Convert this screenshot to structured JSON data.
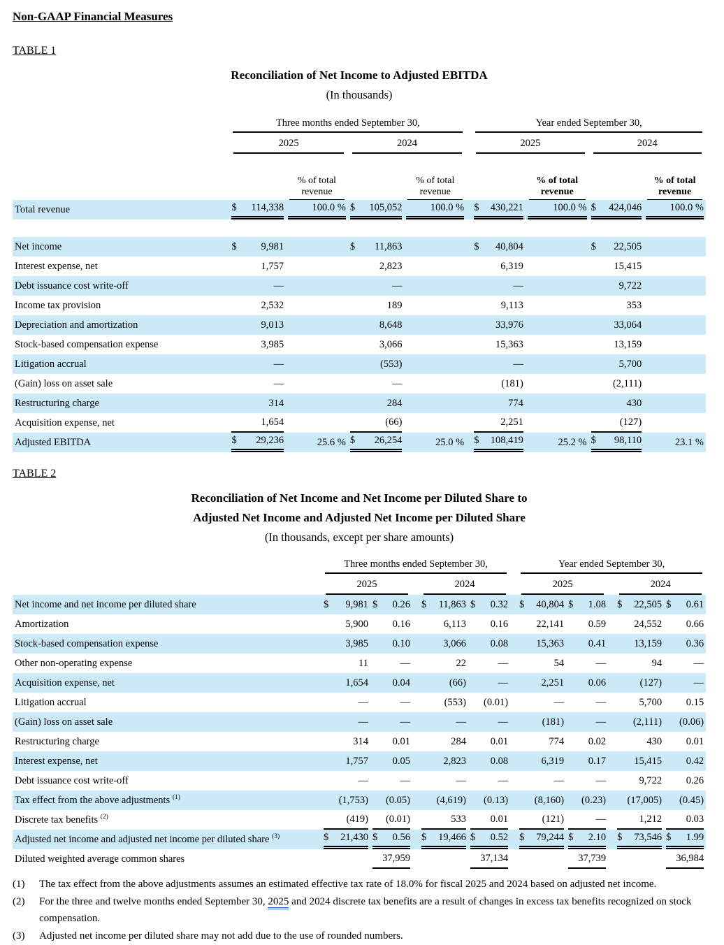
{
  "page": {
    "section_heading": "Non-GAAP Financial Measures",
    "table1_label": "TABLE 1",
    "table2_label": "TABLE 2"
  },
  "colors": {
    "row_highlight": "#cce9f8",
    "footnote_mark_underline": "#2e6bd8",
    "rule_color": "#000000"
  },
  "table1": {
    "title": "Reconciliation of Net Income to Adjusted EBITDA",
    "subtitle": "(In thousands)",
    "groups": [
      "Three months ended September 30,",
      "Year ended September 30,"
    ],
    "years": [
      "2025",
      "2024",
      "2025",
      "2024"
    ],
    "pct_headers": [
      {
        "text": "% of total revenue",
        "bold": false
      },
      {
        "text": "% of total revenue",
        "bold": false
      },
      {
        "text": "% of total revenue",
        "bold": true
      },
      {
        "text": "% of total revenue",
        "bold": true
      }
    ],
    "rows": [
      {
        "label": "Total revenue",
        "shade": true,
        "cells": [
          {
            "p": "$",
            "v": "114,338",
            "u": "double"
          },
          {
            "v": "100.0 %",
            "u": "double"
          },
          {
            "p": "$",
            "v": "105,052",
            "u": "double"
          },
          {
            "v": "100.0 %",
            "u": "double"
          },
          {
            "p": "$",
            "v": "430,221",
            "u": "double"
          },
          {
            "v": "100.0 %",
            "u": "double"
          },
          {
            "p": "$",
            "v": "424,046",
            "u": "double"
          },
          {
            "v": "100.0 %",
            "u": "double"
          }
        ]
      },
      {
        "gap": true
      },
      {
        "label": "Net income",
        "shade": true,
        "cells": [
          {
            "p": "$",
            "v": "9,981"
          },
          {},
          {
            "p": "$",
            "v": "11,863"
          },
          {},
          {
            "p": "$",
            "v": "40,804"
          },
          {},
          {
            "p": "$",
            "v": "22,505"
          },
          {}
        ]
      },
      {
        "label": "Interest expense, net",
        "shade": false,
        "cells": [
          {
            "v": "1,757"
          },
          {},
          {
            "v": "2,823"
          },
          {},
          {
            "v": "6,319"
          },
          {},
          {
            "v": "15,415"
          },
          {}
        ]
      },
      {
        "label": "Debt issuance cost write-off",
        "shade": true,
        "cells": [
          {
            "v": "—"
          },
          {},
          {
            "v": "—"
          },
          {},
          {
            "v": "—"
          },
          {},
          {
            "v": "9,722"
          },
          {}
        ]
      },
      {
        "label": "Income tax provision",
        "shade": false,
        "cells": [
          {
            "v": "2,532"
          },
          {},
          {
            "v": "189"
          },
          {},
          {
            "v": "9,113"
          },
          {},
          {
            "v": "353"
          },
          {}
        ]
      },
      {
        "label": "Depreciation and amortization",
        "shade": true,
        "cells": [
          {
            "v": "9,013"
          },
          {},
          {
            "v": "8,648"
          },
          {},
          {
            "v": "33,976"
          },
          {},
          {
            "v": "33,064"
          },
          {}
        ]
      },
      {
        "label": "Stock-based compensation expense",
        "shade": false,
        "cells": [
          {
            "v": "3,985"
          },
          {},
          {
            "v": "3,066"
          },
          {},
          {
            "v": "15,363"
          },
          {},
          {
            "v": "13,159"
          },
          {}
        ]
      },
      {
        "label": "Litigation accrual",
        "shade": true,
        "cells": [
          {
            "v": "—"
          },
          {},
          {
            "v": "(553)"
          },
          {},
          {
            "v": "—"
          },
          {},
          {
            "v": "5,700"
          },
          {}
        ]
      },
      {
        "label": "(Gain) loss on asset sale",
        "shade": false,
        "cells": [
          {
            "v": "—"
          },
          {},
          {
            "v": "—"
          },
          {},
          {
            "v": "(181)"
          },
          {},
          {
            "v": "(2,111)"
          },
          {}
        ]
      },
      {
        "label": "Restructuring charge",
        "shade": true,
        "cells": [
          {
            "v": "314"
          },
          {},
          {
            "v": "284"
          },
          {},
          {
            "v": "774"
          },
          {},
          {
            "v": "430"
          },
          {}
        ]
      },
      {
        "label": "Acquisition expense, net",
        "shade": false,
        "cells": [
          {
            "v": "1,654",
            "u": "single"
          },
          {},
          {
            "v": "(66)",
            "u": "single"
          },
          {},
          {
            "v": "2,251",
            "u": "single"
          },
          {},
          {
            "v": "(127)",
            "u": "single"
          },
          {}
        ]
      },
      {
        "label": "Adjusted EBITDA",
        "shade": true,
        "cells": [
          {
            "p": "$",
            "v": "29,236",
            "u": "double"
          },
          {
            "v": "25.6 %"
          },
          {
            "p": "$",
            "v": "26,254",
            "u": "double"
          },
          {
            "v": "25.0 %"
          },
          {
            "p": "$",
            "v": "108,419",
            "u": "double"
          },
          {
            "v": "25.2 %"
          },
          {
            "p": "$",
            "v": "98,110",
            "u": "double"
          },
          {
            "v": "23.1 %"
          }
        ]
      }
    ]
  },
  "table2": {
    "title_line1": "Reconciliation of Net Income and Net Income per Diluted Share to",
    "title_line2": "Adjusted Net Income and Adjusted Net Income per Diluted Share",
    "subtitle": "(In thousands, except per share amounts)",
    "groups": [
      "Three months ended September 30,",
      "Year ended September 30,"
    ],
    "years": [
      "2025",
      "2024",
      "2025",
      "2024"
    ],
    "rows": [
      {
        "label": "Net income and net income per diluted share",
        "shade": true,
        "cells": [
          {
            "p": "$",
            "v": "9,981"
          },
          {
            "p": "$",
            "v": "0.26"
          },
          {
            "p": "$",
            "v": "11,863"
          },
          {
            "p": "$",
            "v": "0.32"
          },
          {
            "p": "$",
            "v": "40,804"
          },
          {
            "p": "$",
            "v": "1.08"
          },
          {
            "p": "$",
            "v": "22,505"
          },
          {
            "p": "$",
            "v": "0.61"
          }
        ]
      },
      {
        "label": "Amortization",
        "shade": false,
        "cells": [
          {
            "v": "5,900"
          },
          {
            "v": "0.16"
          },
          {
            "v": "6,113"
          },
          {
            "v": "0.16"
          },
          {
            "v": "22,141"
          },
          {
            "v": "0.59"
          },
          {
            "v": "24,552"
          },
          {
            "v": "0.66"
          }
        ]
      },
      {
        "label": "Stock-based compensation expense",
        "shade": true,
        "cells": [
          {
            "v": "3,985"
          },
          {
            "v": "0.10"
          },
          {
            "v": "3,066"
          },
          {
            "v": "0.08"
          },
          {
            "v": "15,363"
          },
          {
            "v": "0.41"
          },
          {
            "v": "13,159"
          },
          {
            "v": "0.36"
          }
        ]
      },
      {
        "label": "Other non-operating expense",
        "shade": false,
        "cells": [
          {
            "v": "11"
          },
          {
            "v": "—"
          },
          {
            "v": "22"
          },
          {
            "v": "—"
          },
          {
            "v": "54"
          },
          {
            "v": "—"
          },
          {
            "v": "94"
          },
          {
            "v": "—"
          }
        ]
      },
      {
        "label": "Acquisition expense, net",
        "shade": true,
        "cells": [
          {
            "v": "1,654"
          },
          {
            "v": "0.04"
          },
          {
            "v": "(66)"
          },
          {
            "v": "—"
          },
          {
            "v": "2,251"
          },
          {
            "v": "0.06"
          },
          {
            "v": "(127)"
          },
          {
            "v": "—"
          }
        ]
      },
      {
        "label": "Litigation accrual",
        "shade": false,
        "cells": [
          {
            "v": "—"
          },
          {
            "v": "—"
          },
          {
            "v": "(553)"
          },
          {
            "v": "(0.01)"
          },
          {
            "v": "—"
          },
          {
            "v": "—"
          },
          {
            "v": "5,700"
          },
          {
            "v": "0.15"
          }
        ]
      },
      {
        "label": "(Gain) loss on asset sale",
        "shade": true,
        "cells": [
          {
            "v": "—"
          },
          {
            "v": "—"
          },
          {
            "v": "—"
          },
          {
            "v": "—"
          },
          {
            "v": "(181)"
          },
          {
            "v": "—"
          },
          {
            "v": "(2,111)"
          },
          {
            "v": "(0.06)"
          }
        ]
      },
      {
        "label": "Restructuring charge",
        "shade": false,
        "cells": [
          {
            "v": "314"
          },
          {
            "v": "0.01"
          },
          {
            "v": "284"
          },
          {
            "v": "0.01"
          },
          {
            "v": "774"
          },
          {
            "v": "0.02"
          },
          {
            "v": "430"
          },
          {
            "v": "0.01"
          }
        ]
      },
      {
        "label": "Interest expense, net",
        "shade": true,
        "cells": [
          {
            "v": "1,757"
          },
          {
            "v": "0.05"
          },
          {
            "v": "2,823"
          },
          {
            "v": "0.08"
          },
          {
            "v": "6,319"
          },
          {
            "v": "0.17"
          },
          {
            "v": "15,415"
          },
          {
            "v": "0.42"
          }
        ]
      },
      {
        "label": "Debt issuance cost write-off",
        "shade": false,
        "cells": [
          {
            "v": "—"
          },
          {
            "v": "—"
          },
          {
            "v": "—"
          },
          {
            "v": "—"
          },
          {
            "v": "—"
          },
          {
            "v": "—"
          },
          {
            "v": "9,722"
          },
          {
            "v": "0.26"
          }
        ]
      },
      {
        "label": "Tax effect from the above adjustments",
        "sup": "(1)",
        "shade": true,
        "cells": [
          {
            "v": "(1,753)"
          },
          {
            "v": "(0.05)"
          },
          {
            "v": "(4,619)"
          },
          {
            "v": "(0.13)"
          },
          {
            "v": "(8,160)"
          },
          {
            "v": "(0.23)"
          },
          {
            "v": "(17,005)"
          },
          {
            "v": "(0.45)"
          }
        ]
      },
      {
        "label": "Discrete tax benefits",
        "sup": "(2)",
        "shade": false,
        "cells": [
          {
            "v": "(419)",
            "u": "single"
          },
          {
            "v": "(0.01)",
            "u": "single"
          },
          {
            "v": "533",
            "u": "single"
          },
          {
            "v": "0.01",
            "u": "single"
          },
          {
            "v": "(121)",
            "u": "single"
          },
          {
            "v": "—",
            "u": "single"
          },
          {
            "v": "1,212",
            "u": "single"
          },
          {
            "v": "0.03",
            "u": "single"
          }
        ]
      },
      {
        "label": "Adjusted net income and adjusted net income per diluted share",
        "sup": "(3)",
        "shade": true,
        "cells": [
          {
            "p": "$",
            "v": "21,430",
            "u": "double"
          },
          {
            "p": "$",
            "v": "0.56",
            "u": "double"
          },
          {
            "p": "$",
            "v": "19,466",
            "u": "double"
          },
          {
            "p": "$",
            "v": "0.52",
            "u": "double"
          },
          {
            "p": "$",
            "v": "79,244",
            "u": "double"
          },
          {
            "p": "$",
            "v": "2.10",
            "u": "double"
          },
          {
            "p": "$",
            "v": "73,546",
            "u": "double"
          },
          {
            "p": "$",
            "v": "1.99",
            "u": "double"
          }
        ]
      },
      {
        "label": "Diluted weighted average common shares",
        "shade": false,
        "cells": [
          {},
          {
            "v": "37,959",
            "u": "single"
          },
          {},
          {
            "v": "37,134",
            "u": "single"
          },
          {},
          {
            "v": "37,739",
            "u": "single"
          },
          {},
          {
            "v": "36,984",
            "u": "single"
          }
        ]
      }
    ]
  },
  "footnotes": [
    {
      "num": "(1)",
      "text": "The tax effect from the above adjustments assumes an estimated effective tax rate of 18.0% for fiscal 2025 and 2024 based on adjusted net income."
    },
    {
      "num": "(2)",
      "text_before": "For the three and twelve months ended September 30, ",
      "marked": "2025",
      "text_after": " and 2024 discrete tax benefits are a result of changes in excess tax benefits recognized on stock compensation."
    },
    {
      "num": "(3)",
      "text": "Adjusted net income per diluted share may not add due to the use of rounded numbers."
    }
  ]
}
